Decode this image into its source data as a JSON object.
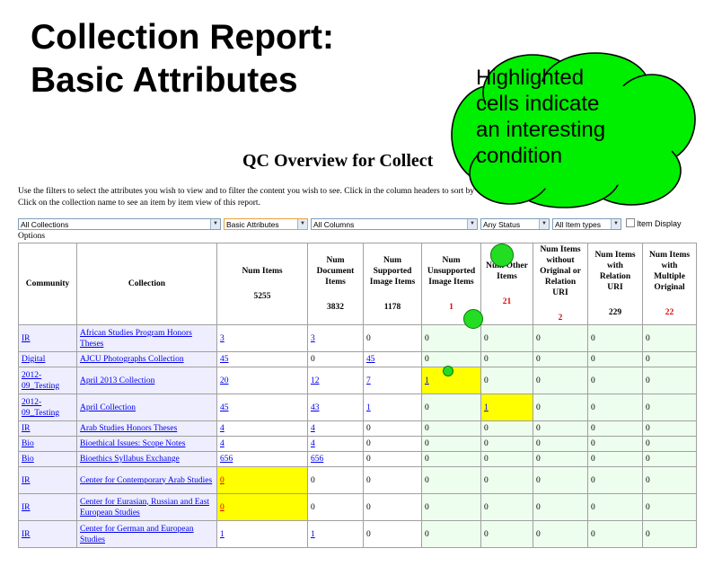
{
  "slide": {
    "title_line1": "Collection Report:",
    "title_line2": "Basic Attributes"
  },
  "callout": {
    "lines": [
      "Highlighted",
      "cells indicate",
      "an interesting",
      "condition"
    ],
    "color": "#00ee00"
  },
  "page": {
    "title": "QC Overview for Collect",
    "instructions_line1": "Use the filters to select the attributes you wish to view and to filter the content you wish to see. Click in the column headers to sort by va",
    "instructions_line2": "Click on the collection name to see an item by item view of this report.",
    "options_label": "Options"
  },
  "filters": {
    "collections": "All Collections",
    "attributes": "Basic Attributes",
    "columns": "All Columns",
    "status": "Any Status",
    "item_types": "All Item types",
    "item_display_label": "Item Display"
  },
  "table": {
    "headers": {
      "community": "Community",
      "collection": "Collection",
      "num_items": "Num Items",
      "num_document_items": "Num Document Items",
      "num_supported_image_items": "Num Supported Image Items",
      "num_unsupported_image_items": "Num Unsupported Image Items",
      "num_other_items": "Num Other Items",
      "num_items_without_original": "Num Items without Original or Relation URI",
      "num_items_with_relation_uri": "Num Items with Relation URI",
      "num_items_with_multiple_original": "Num Items with Multiple Original"
    },
    "totals": {
      "num_items": "5255",
      "num_document_items": "3832",
      "num_supported_image_items": "1178",
      "num_unsupported_image_items": "1",
      "num_other_items": "21",
      "num_items_without_original": "2",
      "num_items_with_relation_uri": "229",
      "num_items_with_multiple_original": "22"
    },
    "rows": [
      {
        "community": "IR",
        "collection": "African Studies Program Honors Theses",
        "num_items": "3",
        "num_document_items": "3",
        "num_supported_image_items": "0",
        "num_unsupported_image_items": "0",
        "num_other_items": "0",
        "num_items_without_original": "0",
        "num_items_with_relation_uri": "0",
        "num_items_with_multiple_original": "0"
      },
      {
        "community": "Digital",
        "collection": "AJCU Photographs Collection",
        "num_items": "45",
        "num_document_items": "0",
        "num_supported_image_items": "45",
        "num_unsupported_image_items": "0",
        "num_other_items": "0",
        "num_items_without_original": "0",
        "num_items_with_relation_uri": "0",
        "num_items_with_multiple_original": "0"
      },
      {
        "community": "2012-09_Testing",
        "collection": "April 2013 Collection",
        "num_items": "20",
        "num_document_items": "12",
        "num_supported_image_items": "7",
        "num_unsupported_image_items": "1",
        "num_other_items": "0",
        "num_items_without_original": "0",
        "num_items_with_relation_uri": "0",
        "num_items_with_multiple_original": "0"
      },
      {
        "community": "2012-09_Testing",
        "collection": "April Collection",
        "num_items": "45",
        "num_document_items": "43",
        "num_supported_image_items": "1",
        "num_unsupported_image_items": "0",
        "num_other_items": "1",
        "num_items_without_original": "0",
        "num_items_with_relation_uri": "0",
        "num_items_with_multiple_original": "0"
      },
      {
        "community": "IR",
        "collection": "Arab Studies Honors Theses",
        "num_items": "4",
        "num_document_items": "4",
        "num_supported_image_items": "0",
        "num_unsupported_image_items": "0",
        "num_other_items": "0",
        "num_items_without_original": "0",
        "num_items_with_relation_uri": "0",
        "num_items_with_multiple_original": "0"
      },
      {
        "community": "Bio",
        "collection": "Bioethical Issues: Scope Notes",
        "num_items": "4",
        "num_document_items": "4",
        "num_supported_image_items": "0",
        "num_unsupported_image_items": "0",
        "num_other_items": "0",
        "num_items_without_original": "0",
        "num_items_with_relation_uri": "0",
        "num_items_with_multiple_original": "0"
      },
      {
        "community": "Bio",
        "collection": "Bioethics Syllabus Exchange",
        "num_items": "656",
        "num_document_items": "656",
        "num_supported_image_items": "0",
        "num_unsupported_image_items": "0",
        "num_other_items": "0",
        "num_items_without_original": "0",
        "num_items_with_relation_uri": "0",
        "num_items_with_multiple_original": "0"
      },
      {
        "community": "IR",
        "collection": "Center for Contemporary Arab Studies",
        "num_items": "0",
        "num_document_items": "0",
        "num_supported_image_items": "0",
        "num_unsupported_image_items": "0",
        "num_other_items": "0",
        "num_items_without_original": "0",
        "num_items_with_relation_uri": "0",
        "num_items_with_multiple_original": "0"
      },
      {
        "community": "IR",
        "collection": "Center for Eurasian, Russian and East European Studies",
        "num_items": "0",
        "num_document_items": "0",
        "num_supported_image_items": "0",
        "num_unsupported_image_items": "0",
        "num_other_items": "0",
        "num_items_without_original": "0",
        "num_items_with_relation_uri": "0",
        "num_items_with_multiple_original": "0"
      },
      {
        "community": "IR",
        "collection": "Center for German and European Studies",
        "num_items": "1",
        "num_document_items": "1",
        "num_supported_image_items": "0",
        "num_unsupported_image_items": "0",
        "num_other_items": "0",
        "num_items_without_original": "0",
        "num_items_with_relation_uri": "0",
        "num_items_with_multiple_original": "0"
      }
    ]
  }
}
